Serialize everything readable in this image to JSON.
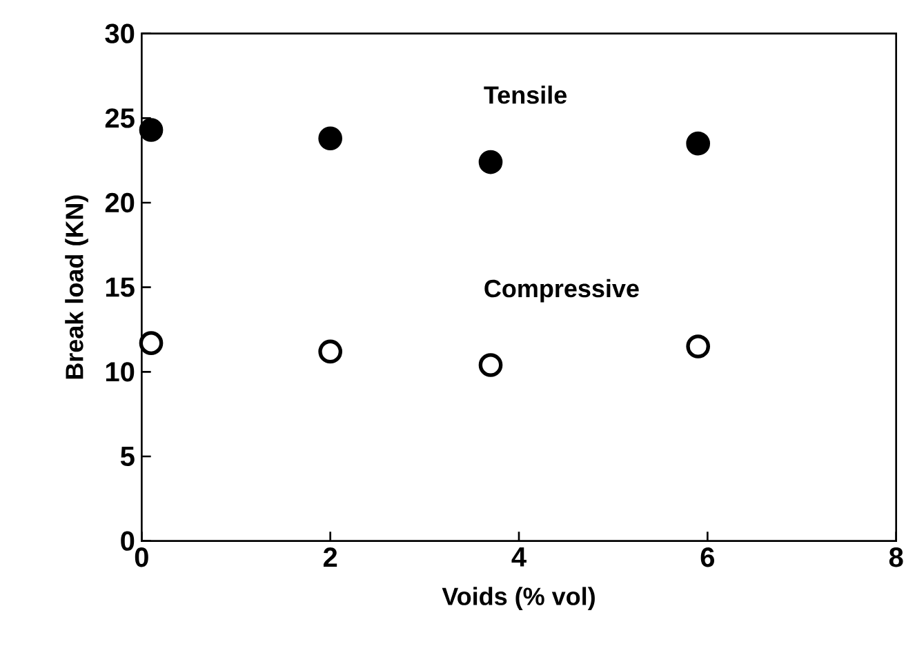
{
  "chart_data": {
    "type": "scatter",
    "xlabel": "Voids (% vol)",
    "ylabel": "Break load (KN)",
    "x": [
      0.1,
      2.0,
      3.7,
      5.9
    ],
    "series": [
      {
        "name": "Tensile",
        "color": "#000000",
        "values": [
          24.3,
          23.8,
          22.4,
          23.5
        ]
      },
      {
        "name": "Compressive",
        "color": "#ffffff",
        "values": [
          11.7,
          11.2,
          10.4,
          11.5
        ]
      }
    ],
    "xlim": [
      0,
      8
    ],
    "ylim": [
      0,
      30
    ],
    "xticks": [
      0,
      2,
      4,
      6,
      8
    ],
    "yticks": [
      0,
      5,
      10,
      15,
      20,
      25,
      30
    ],
    "grid": false,
    "legend": false
  }
}
